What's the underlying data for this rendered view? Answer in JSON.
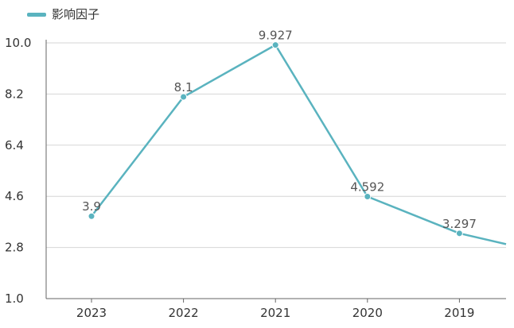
{
  "chart_data": {
    "type": "line",
    "categories": [
      "2023",
      "2022",
      "2021",
      "2020",
      "2019"
    ],
    "series": [
      {
        "name": "影响因子",
        "values": [
          3.9,
          8.1,
          9.927,
          4.592,
          3.297
        ],
        "labels": [
          "3.9",
          "8.1",
          "9.927",
          "4.592",
          "3.297"
        ]
      }
    ],
    "trailing_value": 2.55,
    "ylim": [
      1.0,
      10.0
    ],
    "yticks": [
      "1.0",
      "2.8",
      "4.6",
      "6.4",
      "8.2",
      "10.0"
    ],
    "grid": true,
    "legend_position": "top-left",
    "colors": {
      "line": "#5ab3bf",
      "grid": "#d6d6d6",
      "axis": "#666666"
    }
  }
}
